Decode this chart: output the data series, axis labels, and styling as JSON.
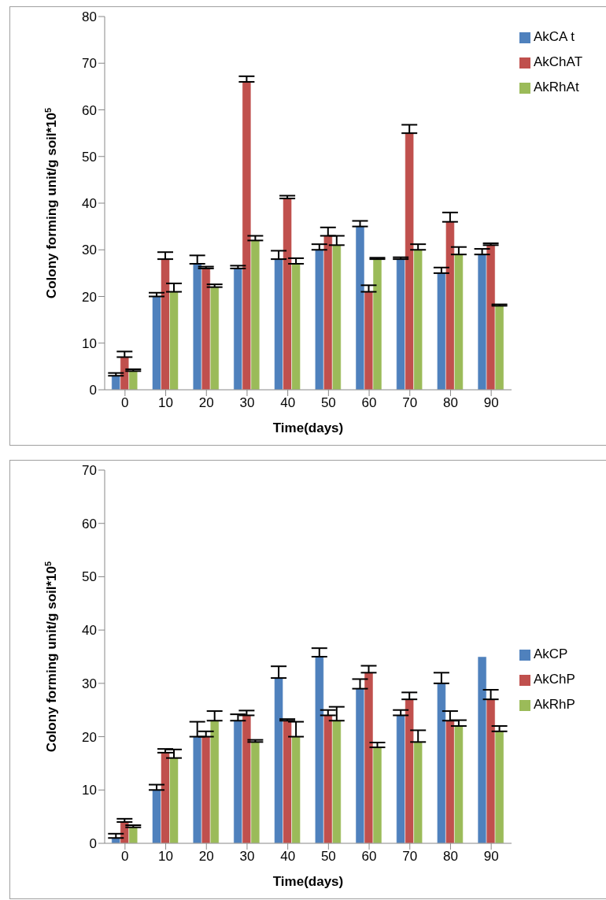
{
  "chart_data": [
    {
      "type": "bar",
      "xlabel": "Time(days)",
      "ylabel": "Colony forming unit/g soil*10$^{5}$",
      "categories": [
        "0",
        "10",
        "20",
        "30",
        "40",
        "50",
        "60",
        "70",
        "80",
        "90"
      ],
      "ylim": [
        0,
        80
      ],
      "yticks": [
        0,
        10,
        20,
        30,
        40,
        50,
        60,
        70,
        80
      ],
      "grid": false,
      "legend": "top right",
      "series": [
        {
          "name": "AkCA t",
          "color": "#4f81bd",
          "values": [
            3,
            20,
            27,
            26,
            28,
            30,
            35,
            28,
            25,
            29
          ],
          "errors": [
            [
              3,
              3.6
            ],
            [
              20,
              20.8
            ],
            [
              27,
              28.8
            ],
            [
              26,
              26.6
            ],
            [
              28,
              29.8
            ],
            [
              30,
              31.2
            ],
            [
              35,
              36.2
            ],
            [
              28,
              28.4
            ],
            [
              25,
              26.2
            ],
            [
              29,
              30.2
            ]
          ]
        },
        {
          "name": "AkChAT",
          "color": "#c0504d",
          "values": [
            7,
            28,
            26,
            66,
            41,
            33,
            21,
            55,
            36,
            31
          ],
          "errors": [
            [
              7,
              8.2
            ],
            [
              28,
              29.5
            ],
            [
              26,
              26.4
            ],
            [
              66,
              67.2
            ],
            [
              41,
              41.6
            ],
            [
              33,
              34.8
            ],
            [
              21,
              22.4
            ],
            [
              55,
              56.8
            ],
            [
              36,
              38
            ],
            [
              31,
              31.4
            ]
          ]
        },
        {
          "name": "AkRhAt",
          "color": "#9bbb59",
          "values": [
            4,
            21,
            22,
            32,
            27,
            31,
            28,
            30,
            29,
            18
          ],
          "errors": [
            [
              4,
              4.4
            ],
            [
              21,
              22.8
            ],
            [
              22,
              22.6
            ],
            [
              32,
              33
            ],
            [
              27,
              28.2
            ],
            [
              31,
              33
            ],
            [
              28,
              28.3
            ],
            [
              30,
              31.2
            ],
            [
              29,
              30.6
            ],
            [
              18,
              18.3
            ]
          ]
        }
      ]
    },
    {
      "type": "bar",
      "xlabel": "Time(days)",
      "ylabel": "Colony forming unit/g soil*10$^{5}$",
      "categories": [
        "0",
        "10",
        "20",
        "30",
        "40",
        "50",
        "60",
        "70",
        "80",
        "90"
      ],
      "ylim": [
        0,
        70
      ],
      "yticks": [
        0,
        10,
        20,
        30,
        40,
        50,
        60,
        70
      ],
      "grid": false,
      "legend": "right",
      "series": [
        {
          "name": "AkCP",
          "color": "#4f81bd",
          "values": [
            1,
            10,
            20,
            23,
            31,
            35,
            29,
            24,
            30,
            35
          ],
          "errors": [
            [
              1,
              1.8
            ],
            [
              10,
              11
            ],
            [
              20,
              22.8
            ],
            [
              23,
              24.2
            ],
            [
              31,
              33.2
            ],
            [
              35,
              36.6
            ],
            [
              29,
              30.8
            ],
            [
              24,
              25
            ],
            [
              30,
              32
            ],
            null
          ]
        },
        {
          "name": "AkChP",
          "color": "#c0504d",
          "values": [
            4,
            17,
            20,
            24,
            23,
            24,
            32,
            27,
            23,
            27
          ],
          "errors": [
            [
              4,
              4.6
            ],
            [
              17,
              17.7
            ],
            [
              20,
              21
            ],
            [
              24,
              24.9
            ],
            [
              23,
              23.3
            ],
            [
              24,
              25
            ],
            [
              32,
              33.3
            ],
            [
              27,
              28.3
            ],
            [
              23,
              24.8
            ],
            [
              27,
              28.8
            ]
          ]
        },
        {
          "name": "AkRhP",
          "color": "#9bbb59",
          "values": [
            3,
            16,
            23,
            19,
            20,
            23,
            18,
            19,
            22,
            21
          ],
          "errors": [
            [
              3,
              3.4
            ],
            [
              16,
              17.6
            ],
            [
              23,
              24.8
            ],
            [
              19,
              19.4
            ],
            [
              20,
              22.8
            ],
            [
              23,
              25.6
            ],
            [
              18,
              18.9
            ],
            [
              19,
              21.2
            ],
            [
              22,
              23.1
            ],
            [
              21,
              22
            ]
          ]
        }
      ]
    }
  ]
}
